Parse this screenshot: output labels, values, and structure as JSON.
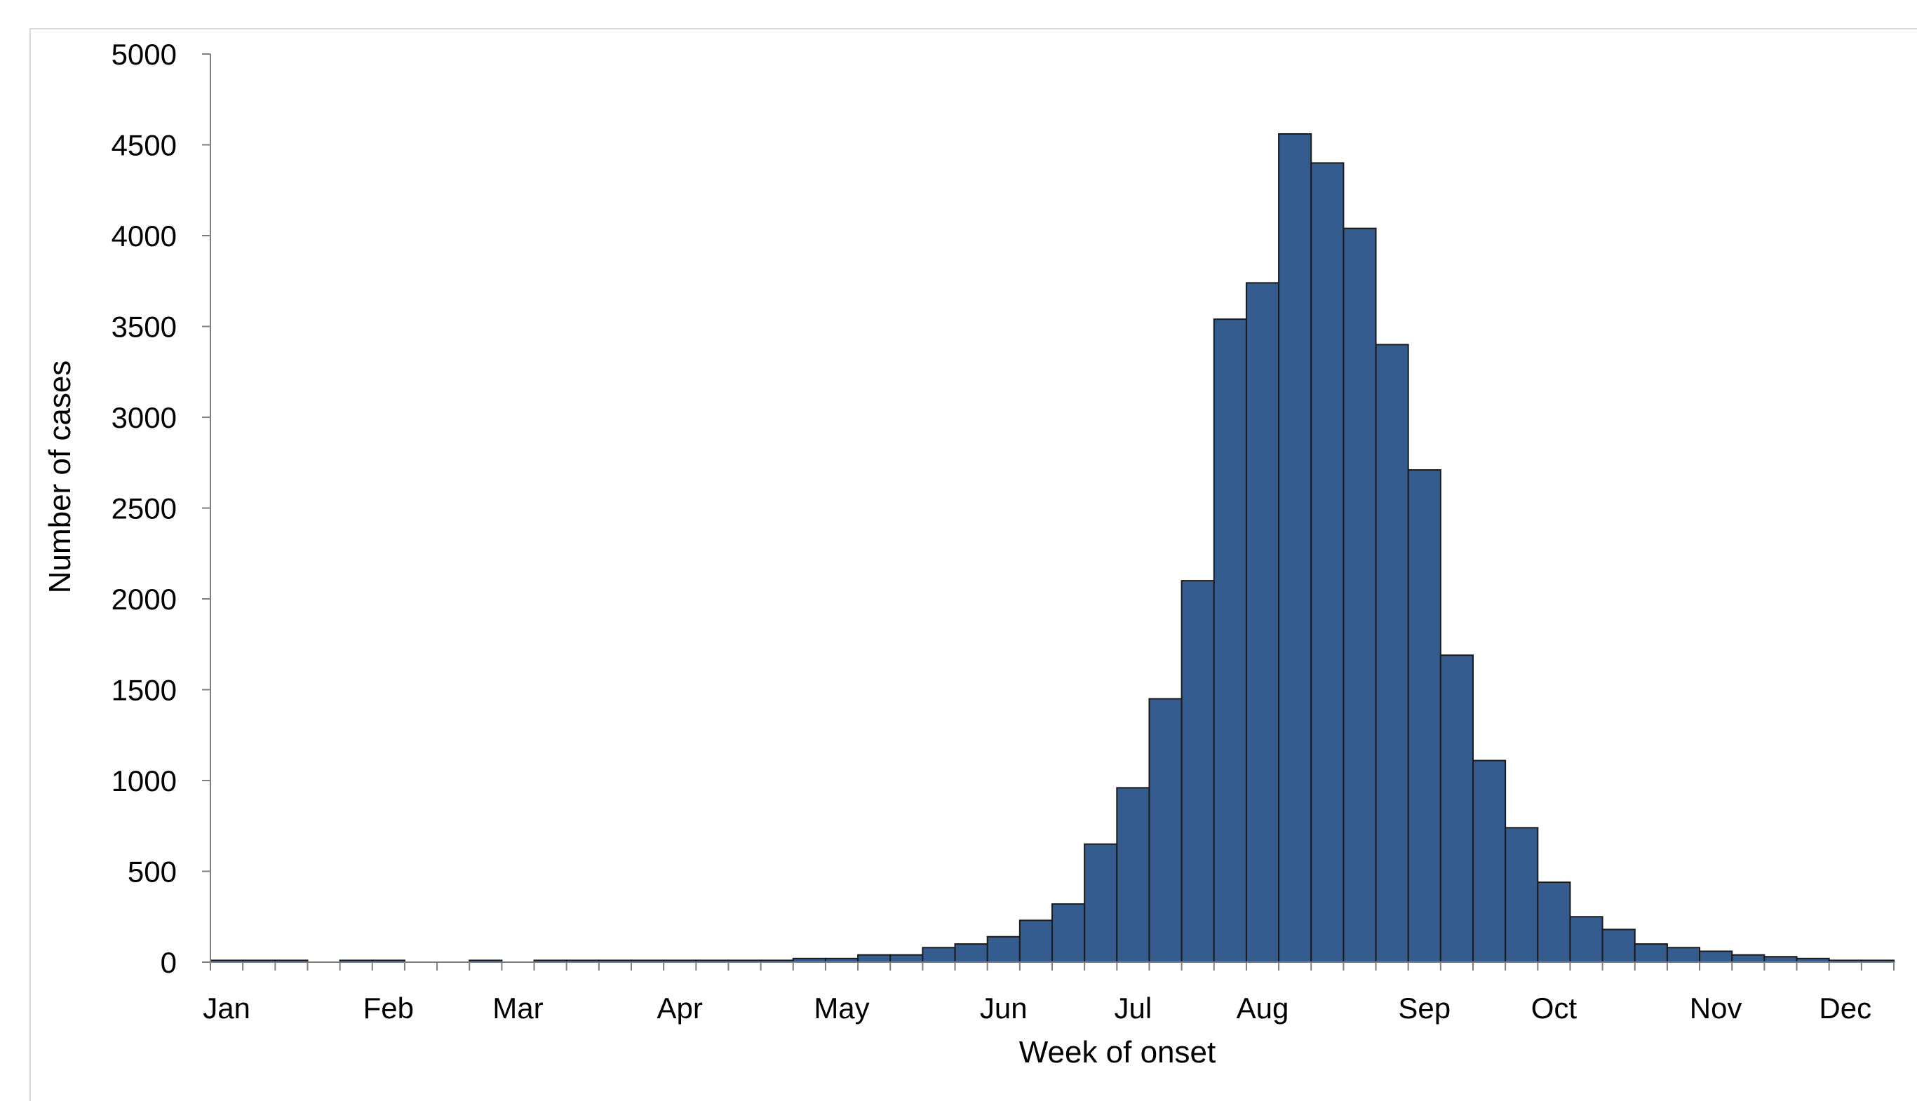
{
  "chart_data": {
    "type": "bar",
    "title": "",
    "xlabel": "Week of onset",
    "ylabel": "Number of cases",
    "ylim": [
      0,
      5000
    ],
    "yticks": [
      0,
      500,
      1000,
      1500,
      2000,
      2500,
      3000,
      3500,
      4000,
      4500,
      5000
    ],
    "grid": false,
    "legend": "none",
    "bar_color": "#345C8F",
    "bar_edge_color": "#1a1a1a",
    "month_labels": [
      {
        "label": "Jan",
        "week": 1
      },
      {
        "label": "Feb",
        "week": 6
      },
      {
        "label": "Mar",
        "week": 10
      },
      {
        "label": "Apr",
        "week": 15
      },
      {
        "label": "May",
        "week": 20
      },
      {
        "label": "Jun",
        "week": 25
      },
      {
        "label": "Jul",
        "week": 29
      },
      {
        "label": "Aug",
        "week": 33
      },
      {
        "label": "Sep",
        "week": 38
      },
      {
        "label": "Oct",
        "week": 42
      },
      {
        "label": "Nov",
        "week": 47
      },
      {
        "label": "Dec",
        "week": 51
      }
    ],
    "weeks": [
      1,
      2,
      3,
      4,
      5,
      6,
      7,
      8,
      9,
      10,
      11,
      12,
      13,
      14,
      15,
      16,
      17,
      18,
      19,
      20,
      21,
      22,
      23,
      24,
      25,
      26,
      27,
      28,
      29,
      30,
      31,
      32,
      33,
      34,
      35,
      36,
      37,
      38,
      39,
      40,
      41,
      42,
      43,
      44,
      45,
      46,
      47,
      48,
      49,
      50,
      51,
      52
    ],
    "values": [
      10,
      10,
      10,
      0,
      10,
      10,
      0,
      0,
      10,
      0,
      10,
      10,
      10,
      10,
      10,
      10,
      10,
      10,
      20,
      20,
      40,
      40,
      80,
      100,
      140,
      230,
      320,
      650,
      960,
      1450,
      2100,
      3540,
      3740,
      4560,
      4400,
      4040,
      3400,
      2710,
      1690,
      1110,
      740,
      440,
      250,
      180,
      100,
      80,
      60,
      40,
      30,
      20,
      10,
      10
    ]
  }
}
